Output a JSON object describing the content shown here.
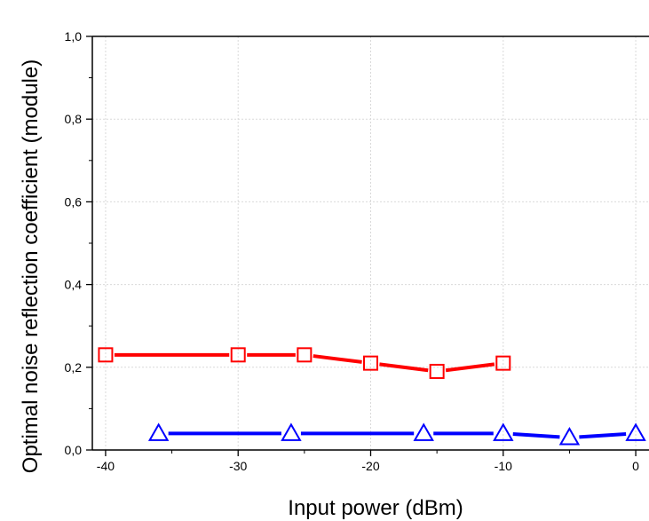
{
  "chart_data": {
    "type": "line",
    "title": "",
    "xlabel": "Input power (dBm)",
    "ylabel": "Optimal noise reflection coefficient (module)",
    "xlim": [
      -41,
      1
    ],
    "ylim": [
      0,
      1
    ],
    "x_ticks": [
      -40,
      -30,
      -20,
      -10,
      0
    ],
    "x_tick_labels": [
      "-40",
      "-30",
      "-20",
      "-10",
      "0"
    ],
    "y_ticks": [
      0,
      0.2,
      0.4,
      0.6,
      0.8,
      1.0
    ],
    "y_tick_labels": [
      "0,0",
      "0,2",
      "0,4",
      "0,6",
      "0,8",
      "1,0"
    ],
    "grid": true,
    "legend": "none",
    "series": [
      {
        "marker": "square",
        "color": "#ff0000",
        "x": [
          -40,
          -30,
          -25,
          -20,
          -15,
          -10
        ],
        "y": [
          0.23,
          0.23,
          0.23,
          0.21,
          0.19,
          0.21
        ]
      },
      {
        "marker": "triangle",
        "color": "#0000ff",
        "x": [
          -36,
          -26,
          -16,
          -10,
          -5,
          0
        ],
        "y": [
          0.04,
          0.04,
          0.04,
          0.04,
          0.03,
          0.04
        ]
      }
    ]
  }
}
